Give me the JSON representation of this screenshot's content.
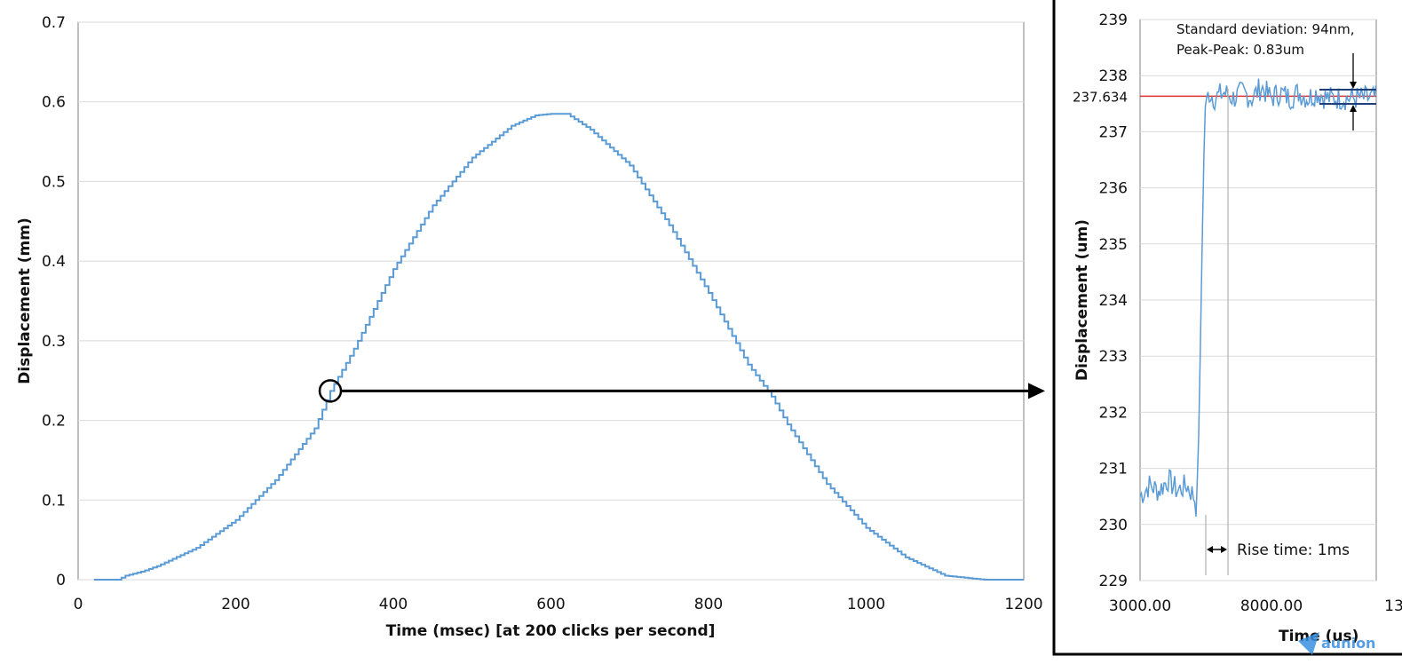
{
  "chart_data": [
    {
      "type": "line",
      "title": "",
      "xlabel": "Time (msec) [at 200 clicks per second]",
      "ylabel": "Displacement (mm)",
      "xlim": [
        0,
        1200
      ],
      "ylim": [
        0,
        0.7
      ],
      "x_ticks": [
        "0",
        "200",
        "400",
        "600",
        "800",
        "1000",
        "1200"
      ],
      "y_ticks": [
        "0",
        "0.1",
        "0.2",
        "0.3",
        "0.4",
        "0.5",
        "0.6",
        "0.7"
      ],
      "grid": true,
      "line_color": "#5b9bd5",
      "series": [
        {
          "x": [
            20,
            50,
            60,
            80,
            100,
            150,
            200,
            250,
            300,
            320,
            350,
            400,
            450,
            500,
            550,
            580,
            600,
            620,
            650,
            700,
            750,
            800,
            850,
            880,
            900,
            950,
            1000,
            1050,
            1100,
            1150,
            1200
          ],
          "y": [
            0,
            0,
            0.005,
            0.01,
            0.017,
            0.04,
            0.075,
            0.125,
            0.19,
            0.237,
            0.29,
            0.39,
            0.47,
            0.53,
            0.57,
            0.583,
            0.585,
            0.585,
            0.565,
            0.52,
            0.445,
            0.36,
            0.27,
            0.23,
            0.195,
            0.12,
            0.065,
            0.028,
            0.005,
            0,
            0
          ]
        }
      ],
      "annotations": [
        {
          "type": "circle-marker",
          "x": 320,
          "y": 0.237
        },
        {
          "type": "arrow-to-inset"
        }
      ]
    },
    {
      "type": "line",
      "title": "",
      "xlabel": "Time (us)",
      "ylabel": "Displacement (um)",
      "xlim": [
        3000,
        13000
      ],
      "ylim": [
        229,
        239
      ],
      "x_ticks": [
        "3000.00",
        "8000.00",
        "13"
      ],
      "y_ticks": [
        "229",
        "230",
        "231",
        "232",
        "233",
        "234",
        "235",
        "236",
        "237",
        "238",
        "239"
      ],
      "grid": true,
      "line_color": "#5b9bd5",
      "reference_line": {
        "value": 237.634,
        "label": "237.634",
        "color": "#e03030"
      },
      "annotations": [
        {
          "text": "Standard deviation: 94nm,",
          "color": "#111111"
        },
        {
          "text": "Peak-Peak: 0.83um",
          "color": "#111111"
        },
        {
          "text": "Rise time: 1ms",
          "color": "#111111"
        }
      ],
      "series": [
        {
          "x": [
            3000,
            3500,
            4000,
            4500,
            5000,
            5500,
            5900,
            6000,
            6100,
            6200,
            6300,
            6400,
            6500,
            6700,
            7000,
            7500,
            8000,
            8500,
            9000,
            9500,
            10000,
            10500,
            11000,
            11500,
            12000,
            12500,
            13000
          ],
          "y": [
            230.5,
            230.7,
            230.6,
            230.8,
            230.6,
            230.7,
            230.5,
            230.2,
            231.0,
            232.5,
            234.5,
            236.3,
            237.5,
            237.7,
            237.6,
            237.7,
            237.6,
            237.7,
            237.6,
            237.8,
            237.6,
            237.7,
            237.6,
            237.7,
            237.6,
            237.7,
            237.6
          ]
        }
      ]
    }
  ],
  "watermark": {
    "text": "aunion"
  }
}
